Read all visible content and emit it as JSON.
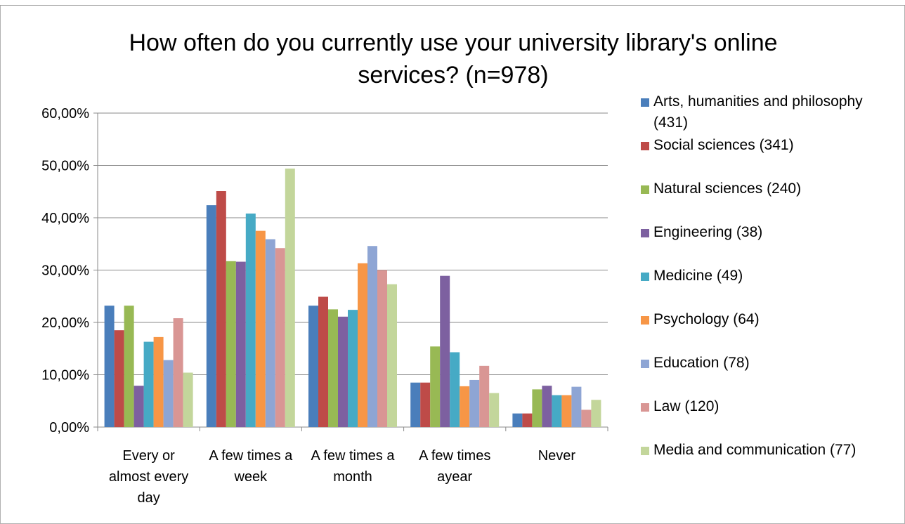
{
  "chart_data": {
    "type": "bar",
    "title": "How often do you currently use your university library's online services? (n=978)",
    "categories": [
      [
        "Every or",
        "almost every",
        "day"
      ],
      [
        "A few times a",
        "week"
      ],
      [
        "A few times a",
        "month"
      ],
      [
        "A few times",
        "ayear"
      ],
      [
        "Never"
      ]
    ],
    "ylim": [
      0,
      0.6
    ],
    "yticks": [
      "0,00%",
      "10,00%",
      "20,00%",
      "30,00%",
      "40,00%",
      "50,00%",
      "60,00%"
    ],
    "grid": true,
    "legend_position": "right",
    "series": [
      {
        "name": "Arts, humanities and philosophy (431)",
        "color": "#4a7ebb",
        "values": [
          0.232,
          0.424,
          0.232,
          0.085,
          0.026
        ]
      },
      {
        "name": "Social sciences (341)",
        "color": "#be4b48",
        "values": [
          0.185,
          0.451,
          0.249,
          0.085,
          0.026
        ]
      },
      {
        "name": "Natural sciences (240)",
        "color": "#98b954",
        "values": [
          0.232,
          0.317,
          0.225,
          0.154,
          0.072
        ]
      },
      {
        "name": "Engineering (38)",
        "color": "#7d60a0",
        "values": [
          0.079,
          0.316,
          0.211,
          0.289,
          0.079
        ]
      },
      {
        "name": "Medicine (49)",
        "color": "#46aac5",
        "values": [
          0.163,
          0.408,
          0.224,
          0.143,
          0.061
        ]
      },
      {
        "name": "Psychology (64)",
        "color": "#f79646",
        "values": [
          0.172,
          0.375,
          0.313,
          0.078,
          0.061
        ]
      },
      {
        "name": "Education (78)",
        "color": "#8ea5d4",
        "values": [
          0.128,
          0.359,
          0.346,
          0.09,
          0.077
        ]
      },
      {
        "name": "Law (120)",
        "color": "#d99694",
        "values": [
          0.208,
          0.342,
          0.3,
          0.117,
          0.033
        ]
      },
      {
        "name": "Media and communication (77)",
        "color": "#c3d69b",
        "values": [
          0.104,
          0.494,
          0.273,
          0.065,
          0.052
        ]
      }
    ]
  }
}
